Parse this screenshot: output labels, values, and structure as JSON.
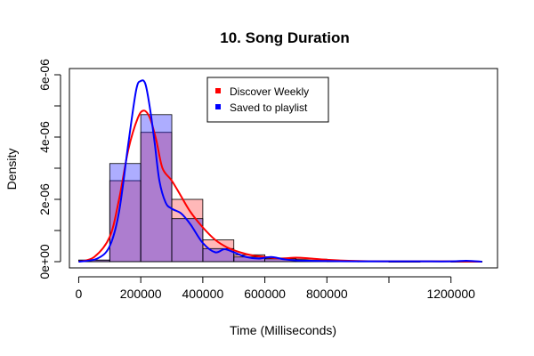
{
  "chart_data": {
    "type": "histogram",
    "title": "10. Song Duration",
    "xlabel": "Time (Milliseconds)",
    "ylabel": "Density",
    "xlim": [
      -30000,
      1350000
    ],
    "ylim": [
      -2e-07,
      6.2e-06
    ],
    "x_ticks": [
      0,
      200000,
      400000,
      600000,
      800000,
      1000000,
      1200000
    ],
    "x_tick_labels": [
      "0",
      "200000",
      "400000",
      "600000",
      "800000",
      "",
      "1200000"
    ],
    "y_ticks": [
      0,
      1e-06,
      2e-06,
      3e-06,
      4e-06,
      5e-06,
      6e-06
    ],
    "y_tick_labels": [
      "0e+00",
      "",
      "2e-06",
      "",
      "4e-06",
      "",
      "6e-06"
    ],
    "bin_edges": [
      0,
      100000,
      200000,
      300000,
      400000,
      500000,
      600000,
      700000,
      800000,
      900000,
      1000000,
      1100000,
      1200000,
      1300000
    ],
    "series": [
      {
        "name": "Discover Weekly",
        "color": "#ff0000",
        "fill": "rgba(255,0,0,0.28)",
        "bar_values": [
          5e-08,
          2.6e-06,
          4.15e-06,
          2e-06,
          7e-07,
          2.2e-07,
          1.2e-07,
          8e-08,
          3e-08,
          1e-08,
          0,
          1e-08,
          0
        ],
        "density": {
          "x": [
            0,
            50000,
            100000,
            130000,
            160000,
            190000,
            210000,
            230000,
            250000,
            270000,
            300000,
            330000,
            360000,
            400000,
            440000,
            480000,
            520000,
            560000,
            600000,
            650000,
            700000,
            750000,
            800000,
            900000,
            1000000,
            1100000,
            1200000,
            1300000
          ],
          "y": [
            0,
            1.5e-07,
            8e-07,
            2e-06,
            3.6e-06,
            4.6e-06,
            4.85e-06,
            4.6e-06,
            3.9e-06,
            3e-06,
            2.6e-06,
            2.1e-06,
            1.6e-06,
            1.1e-06,
            7e-07,
            4.5e-07,
            3e-07,
            2e-07,
            1.5e-07,
            1e-07,
            1.3e-07,
            1e-07,
            6e-08,
            2e-08,
            1e-08,
            1e-08,
            1e-08,
            0
          ]
        }
      },
      {
        "name": "Saved to playlist",
        "color": "#0000ff",
        "fill": "rgba(0,0,255,0.32)",
        "bar_values": [
          5e-08,
          3.15e-06,
          4.72e-06,
          1.38e-06,
          4.2e-07,
          1.5e-07,
          9e-08,
          4e-08,
          1e-08,
          1e-08,
          0,
          1e-08,
          1e-08
        ],
        "density": {
          "x": [
            0,
            60000,
            100000,
            130000,
            160000,
            185000,
            200000,
            215000,
            230000,
            245000,
            260000,
            280000,
            300000,
            330000,
            360000,
            400000,
            440000,
            470000,
            500000,
            540000,
            580000,
            620000,
            660000,
            700000,
            800000,
            900000,
            1000000,
            1100000,
            1200000,
            1250000,
            1300000
          ],
          "y": [
            0,
            1e-07,
            5e-07,
            1.6e-06,
            3.8e-06,
            5.5e-06,
            5.8e-06,
            5.7e-06,
            4.9e-06,
            3.8e-06,
            2.6e-06,
            1.9e-06,
            1.7e-06,
            1.55e-06,
            1.2e-06,
            6e-07,
            3e-07,
            4e-07,
            3e-07,
            1.5e-07,
            1e-07,
            1.5e-07,
            8e-08,
            4e-08,
            2e-08,
            1e-08,
            1e-08,
            1e-08,
            1e-08,
            3e-08,
            0
          ]
        }
      }
    ],
    "legend": {
      "placement": "top-center"
    }
  }
}
